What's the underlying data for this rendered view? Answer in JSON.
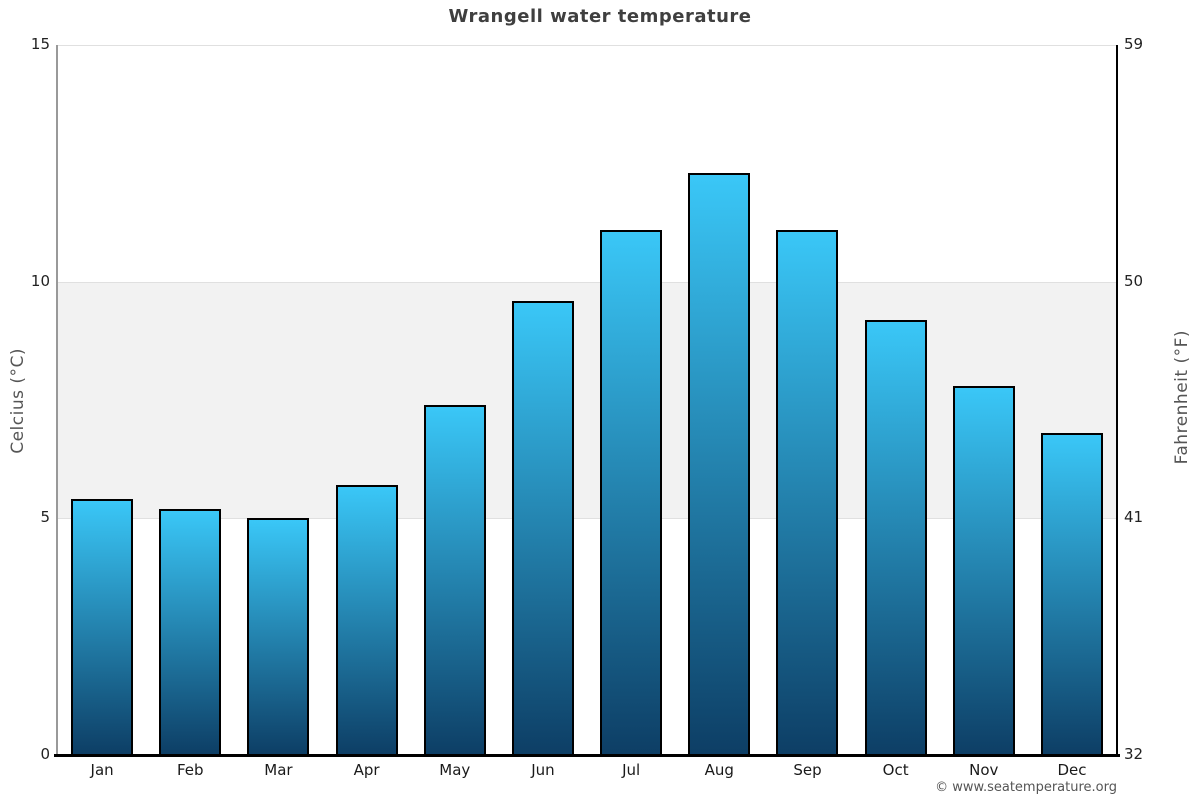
{
  "title": "Wrangell water temperature",
  "axes": {
    "left": {
      "title": "Celcius (°C)",
      "ticks": [
        "15",
        "10",
        "5",
        "0"
      ]
    },
    "right": {
      "title": "Fahrenheit (°F)",
      "ticks": [
        "59",
        "50",
        "41",
        "32"
      ]
    }
  },
  "x_axis": {
    "labels": [
      "Jan",
      "Feb",
      "Mar",
      "Apr",
      "May",
      "Jun",
      "Jul",
      "Aug",
      "Sep",
      "Oct",
      "Nov",
      "Dec"
    ]
  },
  "footer": {
    "copyright": "© www.seatemperature.org"
  },
  "colors": {
    "bar_top": "#3ac7f7",
    "bar_bottom": "#0d3e65",
    "bar_border": "#000000",
    "band": "#f2f2f2",
    "gridline": "#e0e0e0",
    "left_axis_line": "#999999",
    "right_axis_line": "#000000",
    "x_axis_line": "#000000",
    "title_text": "#3f3f3f",
    "tick_text": "#222222",
    "axis_title_text": "#555555",
    "copyright_text": "#555555"
  },
  "chart_data": {
    "type": "bar",
    "title": "Wrangell water temperature",
    "categories": [
      "Jan",
      "Feb",
      "Mar",
      "Apr",
      "May",
      "Jun",
      "Jul",
      "Aug",
      "Sep",
      "Oct",
      "Nov",
      "Dec"
    ],
    "values": [
      5.4,
      5.2,
      5.0,
      5.7,
      7.4,
      9.6,
      11.1,
      12.3,
      11.1,
      9.2,
      7.8,
      6.8
    ],
    "unit": "°C",
    "ylabel_left": "Celcius (°C)",
    "ylabel_right": "Fahrenheit (°F)",
    "ylim_celsius": [
      0,
      15
    ],
    "ylim_fahrenheit": [
      32,
      59
    ],
    "yticks_celsius": [
      0,
      5,
      10,
      15
    ],
    "yticks_fahrenheit": [
      32,
      41,
      50,
      59
    ],
    "plot_bands_celsius": [
      {
        "from": 5,
        "to": 10
      }
    ],
    "legend": "none",
    "grid": "horizontal",
    "bar_gradient": [
      "#3ac7f7",
      "#0d3e65"
    ]
  }
}
